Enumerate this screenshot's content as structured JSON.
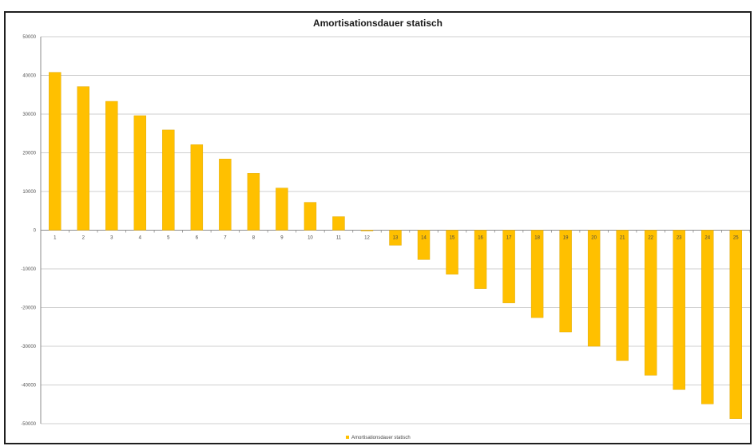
{
  "chart_data": {
    "type": "bar",
    "title": "Amortisationsdauer statisch",
    "xlabel": "",
    "ylabel": "",
    "categories": [
      "1",
      "2",
      "3",
      "4",
      "5",
      "6",
      "7",
      "8",
      "9",
      "10",
      "11",
      "12",
      "13",
      "14",
      "15",
      "16",
      "17",
      "18",
      "19",
      "20",
      "21",
      "22",
      "23",
      "24",
      "25"
    ],
    "series": [
      {
        "name": "Amortisationsdauer statisch",
        "color": "#FFC000",
        "values": [
          40800,
          37100,
          33300,
          29600,
          25900,
          22100,
          18400,
          14700,
          10900,
          7200,
          3500,
          -200,
          -3900,
          -7600,
          -11400,
          -15100,
          -18800,
          -22600,
          -26300,
          -30000,
          -33700,
          -37500,
          -41200,
          -44900,
          -48700
        ]
      }
    ],
    "ylim": [
      -50000,
      50000
    ],
    "y_ticks": [
      "50000",
      "40000",
      "30000",
      "20000",
      "10000",
      "0",
      "-10000",
      "-20000",
      "-30000",
      "-40000",
      "-50000"
    ],
    "y_tick_values": [
      50000,
      40000,
      30000,
      20000,
      10000,
      0,
      -10000,
      -20000,
      -30000,
      -40000,
      -50000
    ],
    "grid": true,
    "legend": "bottom"
  }
}
